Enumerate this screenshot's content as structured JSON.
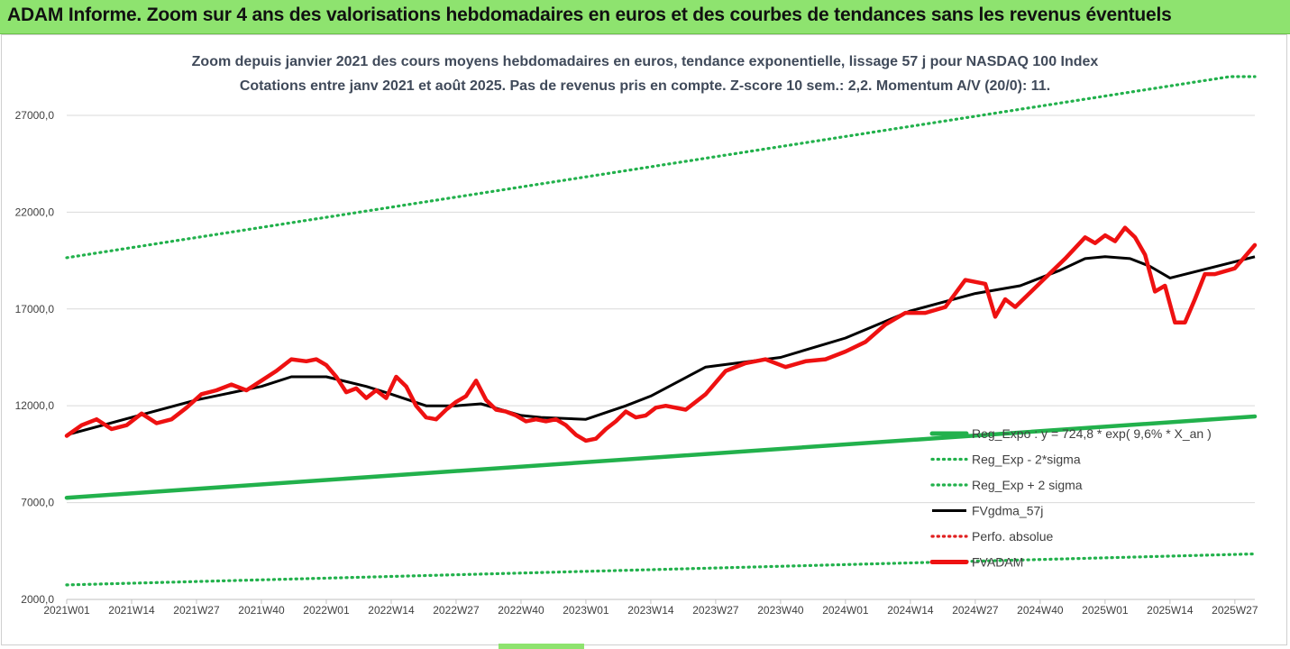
{
  "header": {
    "title": "ADAM Informe. Zoom sur 4 ans des valorisations hebdomadaires en euros et des courbes de tendances sans les revenus éventuels"
  },
  "colors": {
    "banner": "#8ee36f",
    "reg_line": "#22b14c",
    "band": "#22b14c",
    "fvgdma": "#000000",
    "perfo": "#e02020",
    "fvadam": "#ee1111"
  },
  "chart_data": {
    "type": "line",
    "title": "Zoom depuis janvier 2021 des cours moyens hebdomadaires en euros, tendance exponentielle, lissage 57 j pour NASDAQ 100 Index",
    "subtitle": "Cotations entre janv 2021 et août 2025.  Pas de revenus pris en compte. Z-score 10 sem.: 2,2. Momentum A/V (20/0): 11.",
    "ylim": [
      2000,
      29000
    ],
    "y_ticks": [
      "2000,0",
      "7000,0",
      "12000,0",
      "17000,0",
      "22000,0",
      "27000,0"
    ],
    "x_ticks": [
      "2021W01",
      "2021W14",
      "2021W27",
      "2021W40",
      "2022W01",
      "2022W14",
      "2022W27",
      "2022W40",
      "2023W01",
      "2023W14",
      "2023W27",
      "2023W40",
      "2024W01",
      "2024W14",
      "2024W27",
      "2024W40",
      "2025W01",
      "2025W14",
      "2025W27"
    ],
    "grid": "horizontal",
    "legend_position": "bottom-right",
    "series": [
      {
        "name": "Reg_Expo : y = 724,8 * exp( 9,6% * X_an )",
        "style": "solid-thick",
        "color": "#22b14c",
        "x": [
          0,
          238
        ],
        "values": [
          7250,
          11450
        ]
      },
      {
        "name": "Reg_Exp - 2*sigma",
        "style": "dotted",
        "color": "#22b14c",
        "x": [
          0,
          238
        ],
        "values": [
          2750,
          4350
        ]
      },
      {
        "name": "Reg_Exp + 2 sigma",
        "style": "dotted",
        "color": "#22b14c",
        "x": [
          0,
          233,
          238
        ],
        "values": [
          19650,
          29000,
          29000
        ]
      },
      {
        "name": "FVgdma_57j",
        "style": "solid",
        "color": "#000000",
        "x": [
          0,
          13,
          26,
          39,
          45,
          52,
          60,
          65,
          72,
          78,
          83,
          91,
          95,
          104,
          112,
          117,
          128,
          143,
          156,
          169,
          182,
          191,
          199,
          204,
          208,
          213,
          217,
          221,
          238
        ],
        "values": [
          10500,
          11400,
          12300,
          13000,
          13500,
          13500,
          13000,
          12600,
          12000,
          12000,
          12100,
          11500,
          11400,
          11300,
          12000,
          12500,
          14000,
          14500,
          15500,
          16900,
          17800,
          18200,
          19000,
          19600,
          19700,
          19600,
          19200,
          18600,
          19700
        ]
      },
      {
        "name": "Perfo. absolue",
        "style": "dotted",
        "color": "#e02020",
        "x": [],
        "values": []
      },
      {
        "name": "FVADAM",
        "style": "solid-thick",
        "color": "#ee1111",
        "x": [
          0,
          3,
          6,
          9,
          12,
          15,
          18,
          21,
          24,
          27,
          30,
          33,
          36,
          39,
          42,
          45,
          48,
          50,
          52,
          54,
          56,
          58,
          60,
          62,
          64,
          66,
          68,
          70,
          72,
          74,
          76,
          78,
          80,
          82,
          84,
          86,
          88,
          90,
          92,
          94,
          96,
          98,
          100,
          102,
          104,
          106,
          108,
          110,
          112,
          114,
          116,
          118,
          120,
          124,
          128,
          132,
          136,
          140,
          144,
          148,
          152,
          156,
          160,
          164,
          168,
          172,
          176,
          180,
          184,
          186,
          188,
          190,
          192,
          196,
          200,
          204,
          206,
          208,
          210,
          212,
          214,
          216,
          218,
          220,
          222,
          224,
          226,
          228,
          230,
          234,
          238
        ],
        "values": [
          10450,
          11000,
          11300,
          10800,
          11000,
          11600,
          11100,
          11300,
          11900,
          12600,
          12800,
          13100,
          12800,
          13300,
          13800,
          14400,
          14300,
          14400,
          14100,
          13500,
          12700,
          12900,
          12400,
          12800,
          12400,
          13500,
          13000,
          12000,
          11400,
          11300,
          11800,
          12200,
          12500,
          13300,
          12300,
          11800,
          11700,
          11500,
          11200,
          11300,
          11200,
          11300,
          11000,
          10500,
          10200,
          10300,
          10800,
          11200,
          11700,
          11400,
          11500,
          11900,
          12000,
          11800,
          12600,
          13800,
          14200,
          14400,
          14000,
          14300,
          14400,
          14800,
          15300,
          16200,
          16800,
          16800,
          17100,
          18500,
          18300,
          16600,
          17500,
          17100,
          17600,
          18600,
          19600,
          20700,
          20400,
          20800,
          20500,
          21200,
          20700,
          19800,
          17900,
          18200,
          16300,
          16300,
          17500,
          18800,
          18800,
          19100,
          20300
        ]
      }
    ]
  }
}
